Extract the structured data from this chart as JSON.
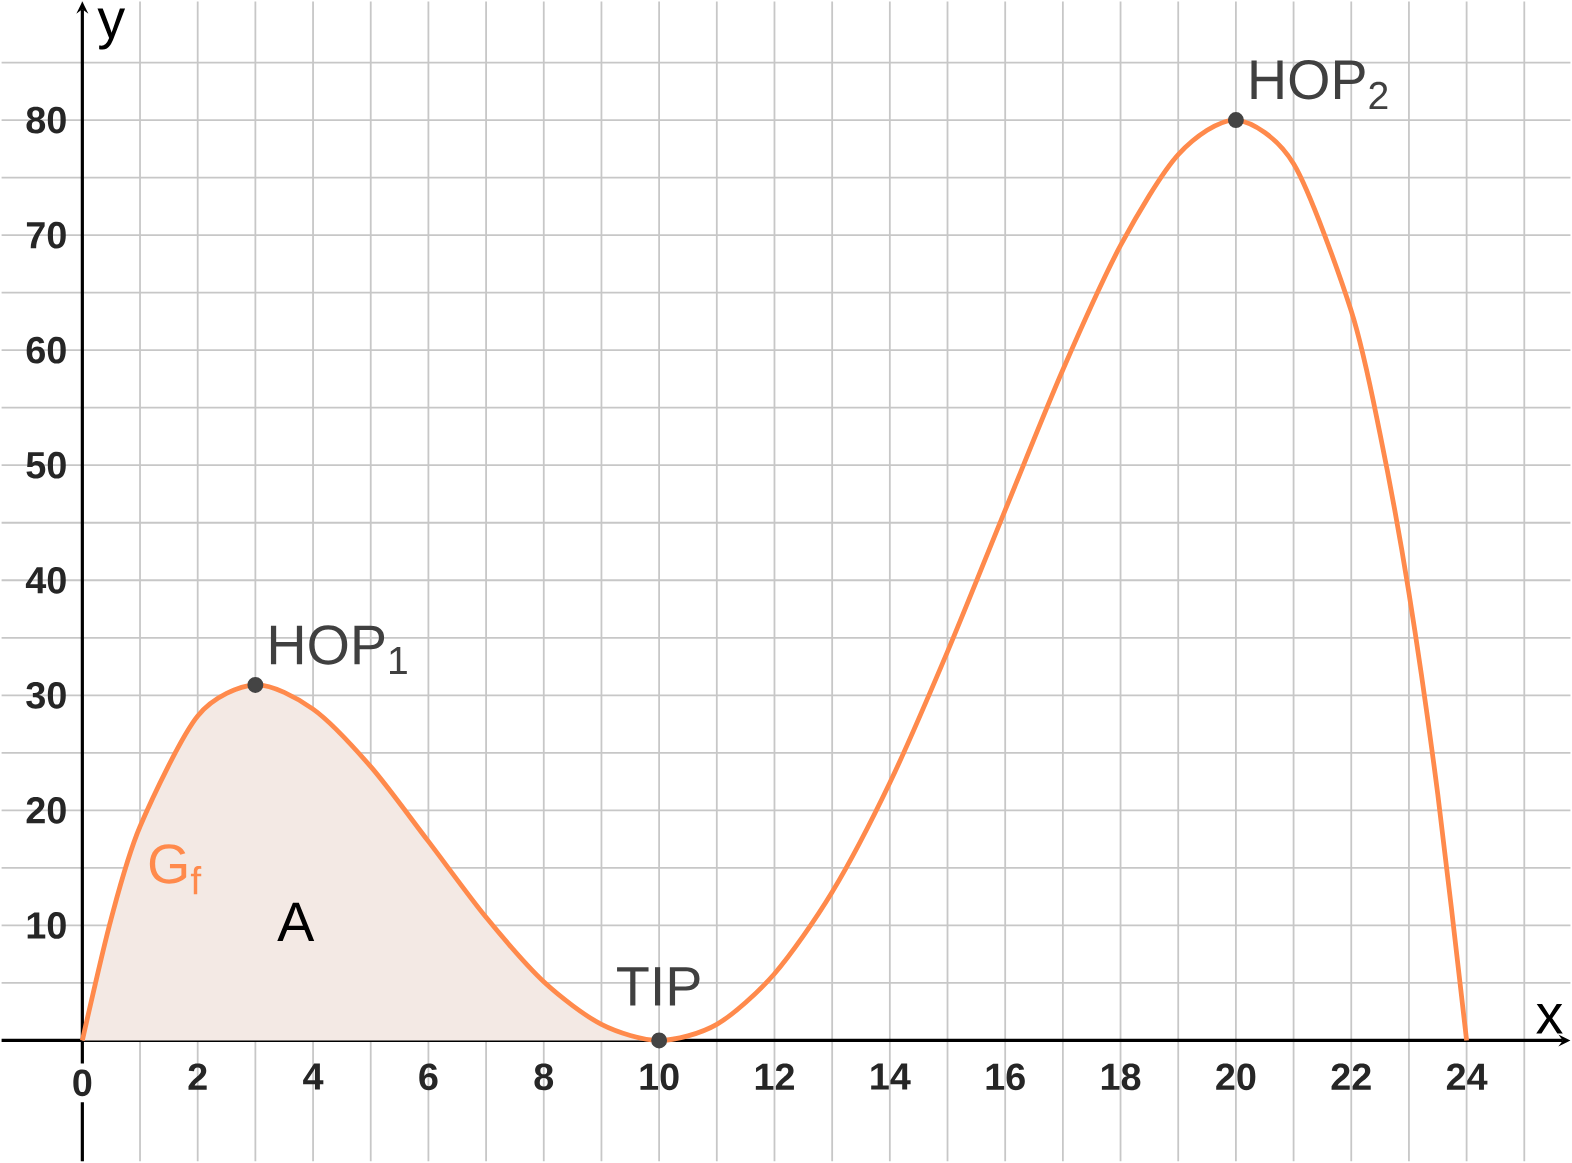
{
  "chart_data": {
    "type": "line",
    "xlabel": "x",
    "ylabel": "y",
    "xlim": [
      -1.4,
      25.8
    ],
    "ylim": [
      -10.5,
      90.3
    ],
    "xticks": [
      0,
      {
        "value": 1,
        "label": null
      },
      2,
      {
        "value": 3,
        "label": null
      },
      4,
      {
        "value": 5,
        "label": null
      },
      6,
      {
        "value": 7,
        "label": null
      },
      8,
      {
        "value": 9,
        "label": null
      },
      10,
      {
        "value": 11,
        "label": null
      },
      12,
      {
        "value": 13,
        "label": null
      },
      14,
      {
        "value": 15,
        "label": null
      },
      16,
      {
        "value": 17,
        "label": null
      },
      18,
      {
        "value": 19,
        "label": null
      },
      20,
      {
        "value": 21,
        "label": null
      },
      22,
      {
        "value": 23,
        "label": null
      },
      24,
      {
        "value": 25,
        "label": null
      }
    ],
    "yticks": [
      {
        "value": 5,
        "label": null
      },
      10,
      {
        "value": 15,
        "label": null
      },
      20,
      {
        "value": 25,
        "label": null
      },
      30,
      {
        "value": 35,
        "label": null
      },
      40,
      {
        "value": 45,
        "label": null
      },
      50,
      {
        "value": 55,
        "label": null
      },
      60,
      {
        "value": 65,
        "label": null
      },
      70,
      {
        "value": 75,
        "label": null
      },
      80,
      {
        "value": 85,
        "label": null
      }
    ],
    "grid": true,
    "series": [
      {
        "type": "area",
        "name": "A",
        "color": "#f3e9e4",
        "x": [
          0,
          0.5,
          1,
          2,
          3,
          4,
          5,
          6,
          7,
          8,
          9,
          10
        ],
        "values": [
          0,
          10.6,
          18.6,
          28.2,
          30.9,
          28.8,
          23.8,
          17.3,
          10.7,
          5.1,
          1.4,
          0
        ]
      },
      {
        "name": "G$_{f}$",
        "color": "#ff8a4c",
        "x": [
          0,
          0.5,
          1,
          2,
          3,
          4,
          5,
          6,
          7,
          8,
          9,
          10,
          11,
          12,
          13,
          14,
          15,
          16,
          17,
          18,
          19,
          20,
          21,
          22,
          22.5,
          23,
          23.5,
          24
        ],
        "values": [
          0,
          10.6,
          18.6,
          28.2,
          30.9,
          28.8,
          23.8,
          17.3,
          10.7,
          5.1,
          1.4,
          0,
          1.4,
          5.8,
          12.9,
          22.4,
          33.8,
          46.1,
          58.3,
          69.1,
          77.0,
          80,
          76.2,
          63.4,
          52.7,
          38.9,
          21.4,
          0
        ]
      },
      {
        "type": "scatter",
        "marker": "circle",
        "color": "#444444",
        "x": [
          3,
          10,
          20
        ],
        "values": [
          30.9,
          0,
          80
        ]
      }
    ],
    "annotations": [
      {
        "text": "HOP$_{1}$",
        "x": 3,
        "y": 30.9
      },
      {
        "text": "TIP",
        "x": 10,
        "y": 0
      },
      {
        "text": "HOP$_{2}$",
        "x": 20,
        "y": 80
      }
    ]
  }
}
